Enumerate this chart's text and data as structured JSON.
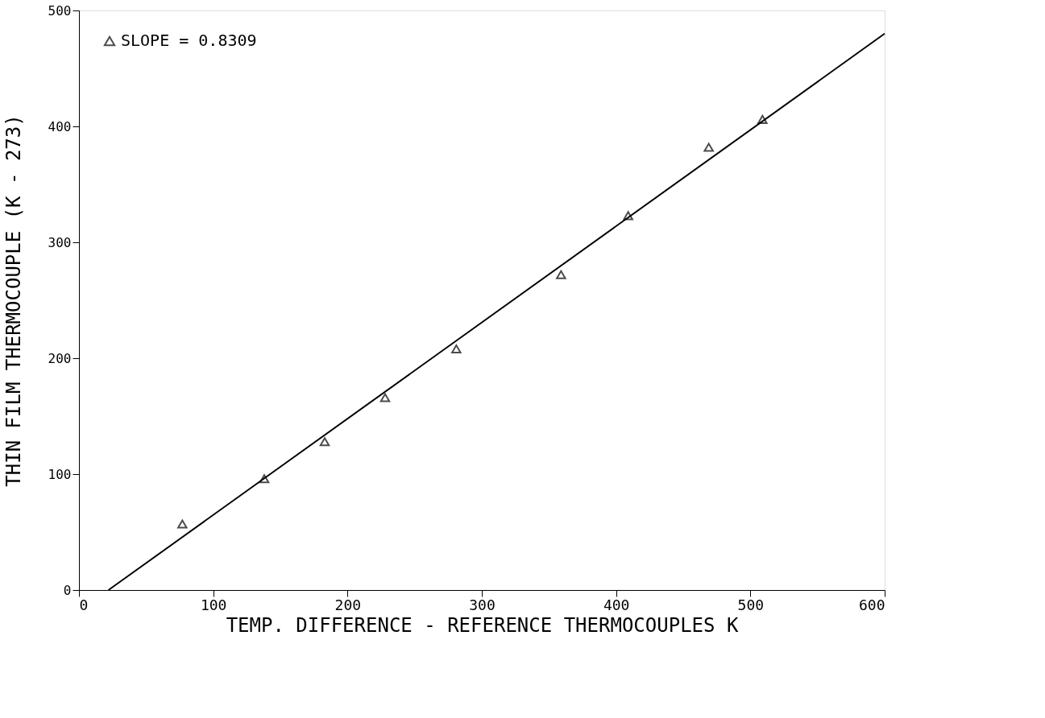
{
  "chart_data": {
    "type": "scatter",
    "xlabel": "TEMP. DIFFERENCE - REFERENCE THERMOCOUPLES K",
    "ylabel": "THIN FILM THERMOCOUPLE (K - 273)",
    "x": [
      77,
      138,
      183,
      228,
      281,
      359,
      409,
      469,
      509
    ],
    "series": [
      {
        "name": "SLOPE = 0.8309",
        "color": "#000000",
        "marker": "triangle",
        "values": [
          57,
          96,
          128,
          166,
          208,
          272,
          323,
          382,
          406
        ]
      },
      {
        "color": "#000000",
        "type": "line",
        "marker": "none",
        "line_style": "solid",
        "x": [
          22,
          600
        ],
        "values": [
          0,
          480
        ]
      }
    ],
    "xlim": [
      0,
      600
    ],
    "xticks": [
      0,
      100,
      200,
      300,
      400,
      500,
      600
    ],
    "ylim": [
      0,
      500
    ],
    "yticks": [
      0,
      100,
      200,
      300,
      400,
      500
    ],
    "grid": false,
    "legend": "top left"
  }
}
